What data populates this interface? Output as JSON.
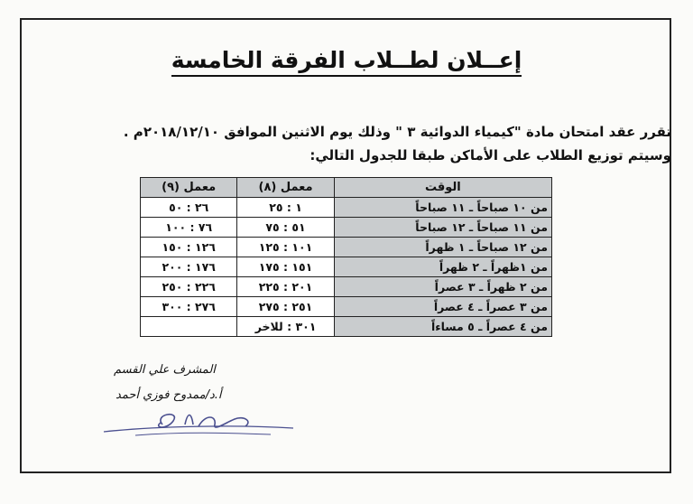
{
  "title": "إعــلان لطــلاب الفرقة الخامسة",
  "body": {
    "line1": "تقرر عقد امتحان مادة \"كيمياء الدوائية ٣ \" وذلك يوم الاثنين الموافق ٢٠١٨/١٢/١٠م .",
    "line2": "وسيتم توزيع الطلاب على الأماكن طبقا للجدول التالي:"
  },
  "table": {
    "headers": [
      "الوقت",
      "معمل (٨)",
      "معمل (٩)"
    ],
    "rows": [
      {
        "time": "من ١٠ صباحاً ـ ١١ صباحاً",
        "lab8": "١ : ٢٥",
        "lab9": "٢٦ : ٥٠"
      },
      {
        "time": "من ١١ صباحاً ـ ١٢ صباحاً",
        "lab8": "٥١ : ٧٥",
        "lab9": "٧٦ : ١٠٠"
      },
      {
        "time": "من ١٢ صباحاً ـ ١ ظهراً",
        "lab8": "١٠١ : ١٢٥",
        "lab9": "١٢٦ : ١٥٠"
      },
      {
        "time": "من ١ظهراً ـ ٢ ظهراً",
        "lab8": "١٥١ : ١٧٥",
        "lab9": "١٧٦ : ٢٠٠"
      },
      {
        "time": "من ٢ ظهراً ـ ٣ عصراً",
        "lab8": "٢٠١ : ٢٢٥",
        "lab9": "٢٢٦ : ٢٥٠"
      },
      {
        "time": "من ٣ عصراً ـ ٤ عصراً",
        "lab8": "٢٥١ : ٢٧٥",
        "lab9": "٢٧٦ : ٣٠٠"
      },
      {
        "time": "من ٤ عصراً ـ ٥ مساءاً",
        "lab8": "٣٠١ : للاخر",
        "lab9": ""
      }
    ]
  },
  "signature": {
    "role": "المشرف علي القسم",
    "name": "أ.د/ممدوح فوزي أحمد"
  }
}
